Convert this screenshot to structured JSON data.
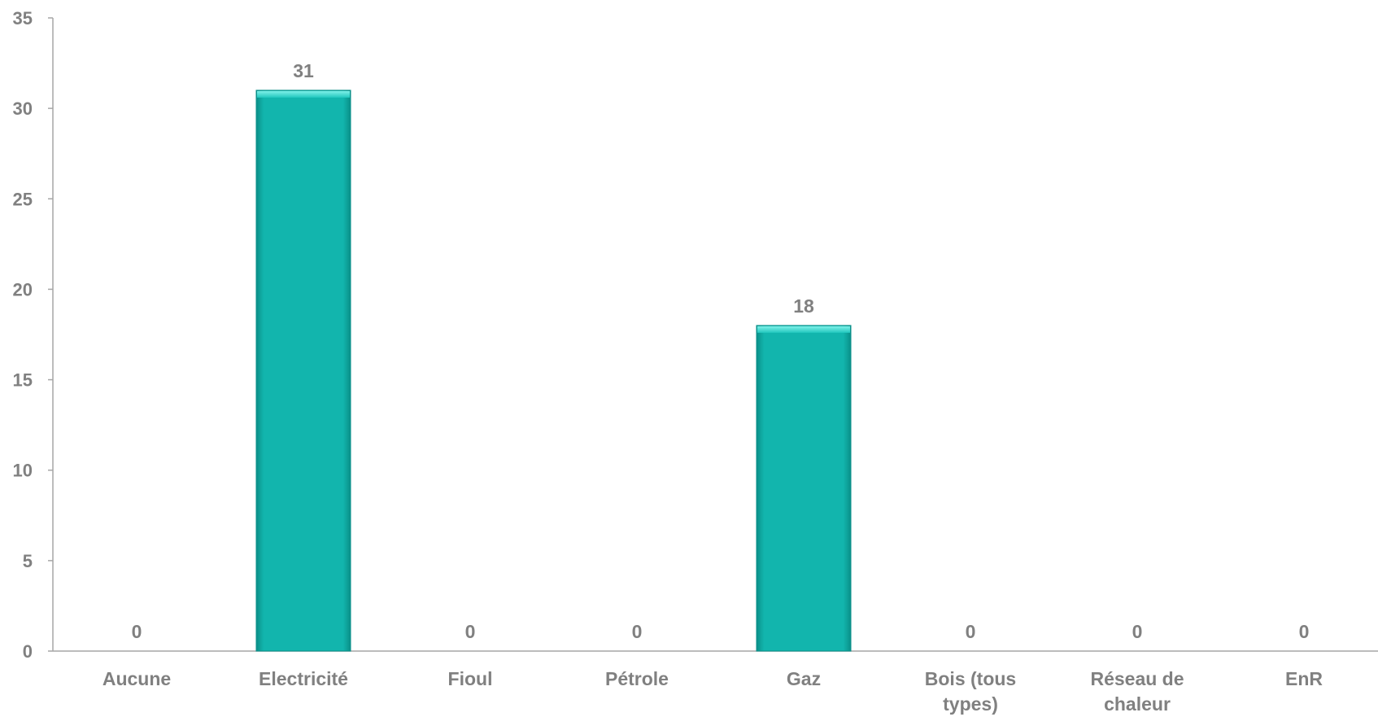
{
  "chart_data": {
    "type": "bar",
    "categories": [
      "Aucune",
      "Electricité",
      "Fioul",
      "Pétrole",
      "Gaz",
      "Bois (tous types)",
      "Réseau de chaleur",
      "EnR"
    ],
    "category_lines": [
      [
        "Aucune"
      ],
      [
        "Electricité"
      ],
      [
        "Fioul"
      ],
      [
        "Pétrole"
      ],
      [
        "Gaz"
      ],
      [
        "Bois (tous",
        "types)"
      ],
      [
        "Réseau de",
        "chaleur"
      ],
      [
        "EnR"
      ]
    ],
    "values": [
      0,
      31,
      0,
      0,
      18,
      0,
      0,
      0
    ],
    "data_labels": [
      "0",
      "31",
      "0",
      "0",
      "18",
      "0",
      "0",
      "0"
    ],
    "title": "",
    "xlabel": "",
    "ylabel": "",
    "ylim": [
      0,
      35
    ],
    "yticks": [
      0,
      5,
      10,
      15,
      20,
      25,
      30,
      35
    ],
    "ytick_labels": [
      "0",
      "5",
      "10",
      "15",
      "20",
      "25",
      "30",
      "35"
    ],
    "grid": false,
    "legend": "none",
    "colors": {
      "bar": "#12b5ad",
      "bar_dark": "#0a8f88",
      "bar_light": "#5fe0d8",
      "axis": "#a6a6a6",
      "text": "#808080"
    }
  }
}
